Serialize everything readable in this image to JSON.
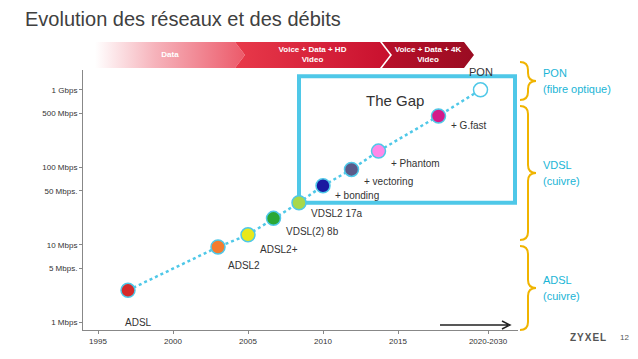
{
  "chart_data": {
    "type": "scatter",
    "title": "Evolution des réseaux et des débits",
    "x": [
      1997,
      2003,
      2005,
      2006.7,
      2008.4,
      2010,
      2011.9,
      2013.7,
      2017.7,
      2020.5
    ],
    "values": [
      2.6,
      9.4,
      13.5,
      22,
      35,
      58,
      94,
      162,
      460,
      1000
    ],
    "labels": [
      "ADSL",
      "ADSL2",
      "ADSL2+",
      "VDSL(2) 8b",
      "VDSL2 17a",
      "+ bonding",
      "+ vectoring",
      "+ Phantom",
      "+ G.fast",
      "PON"
    ],
    "colors": [
      "#d62a2a",
      "#f47c30",
      "#e8e81c",
      "#2aa836",
      "#a8d84a",
      "#1a1aa0",
      "#5a5a8a",
      "#ff88e8",
      "#d41a8a",
      "#ffffff"
    ],
    "color": "#4fc8e8",
    "marker": "circle",
    "line_style": "dotted",
    "log": "y",
    "grid": false,
    "xlim": [
      1994,
      2023
    ],
    "xticks": [
      1995,
      2000,
      2005,
      2010,
      2015,
      {
        "value": 2021,
        "label": "2020-2030"
      }
    ],
    "ylim": [
      0.8,
      1800
    ],
    "yticks": [
      {
        "value": 1,
        "label": "1 Mbps"
      },
      {
        "value": 5,
        "label": "5 Mbps."
      },
      {
        "value": 10,
        "label": "10 Mbps"
      },
      {
        "value": 50,
        "label": "50 Mbps."
      },
      {
        "value": 100,
        "label": "100 Mbps"
      },
      {
        "value": 500,
        "label": "500 Mbps"
      },
      {
        "value": 1000,
        "label": "1 Gbps"
      }
    ],
    "annotation": "The Gap"
  },
  "banner": [
    "Data",
    "Voice + Data + HD Video",
    "Voice + Data + 4K Video"
  ],
  "technology_groups": [
    {
      "name": "PON",
      "medium": "(fibre optique)"
    },
    {
      "name": "VDSL",
      "medium": "(cuivre)"
    },
    {
      "name": "ADSL",
      "medium": "(cuivre)"
    }
  ],
  "footer": {
    "brand": "ZYXEL",
    "page": "12"
  }
}
